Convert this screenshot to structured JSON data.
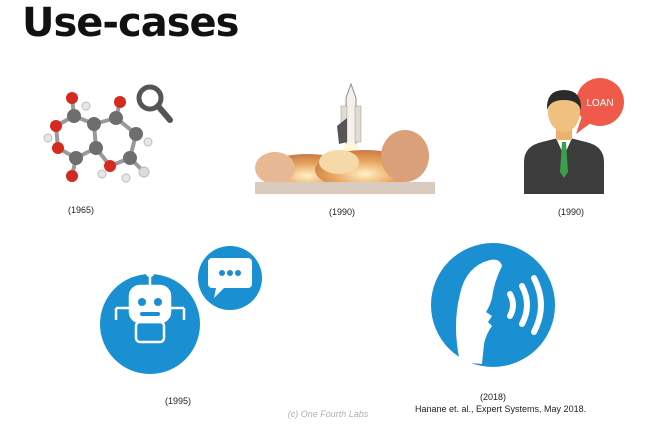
{
  "slide": {
    "title": "Use-cases",
    "items": [
      {
        "icon": "molecule-search-icon",
        "year": "(1965)"
      },
      {
        "icon": "rocket-launch-image",
        "year": "(1990)"
      },
      {
        "icon": "loan-officer-icon",
        "year": "(1990)",
        "bubble_text": "LOAN"
      },
      {
        "icon": "chatbot-icon",
        "year": "(1995)"
      },
      {
        "icon": "speaking-head-icon",
        "year": "(2018)",
        "citation": "Hanane et. al., Expert Systems, May 2018."
      }
    ],
    "footer": "(c) One Fourth Labs"
  },
  "colors": {
    "blue": "#1a8fd1",
    "loan_bubble": "#ef5a4b",
    "molecule_red": "#d52a1f"
  }
}
